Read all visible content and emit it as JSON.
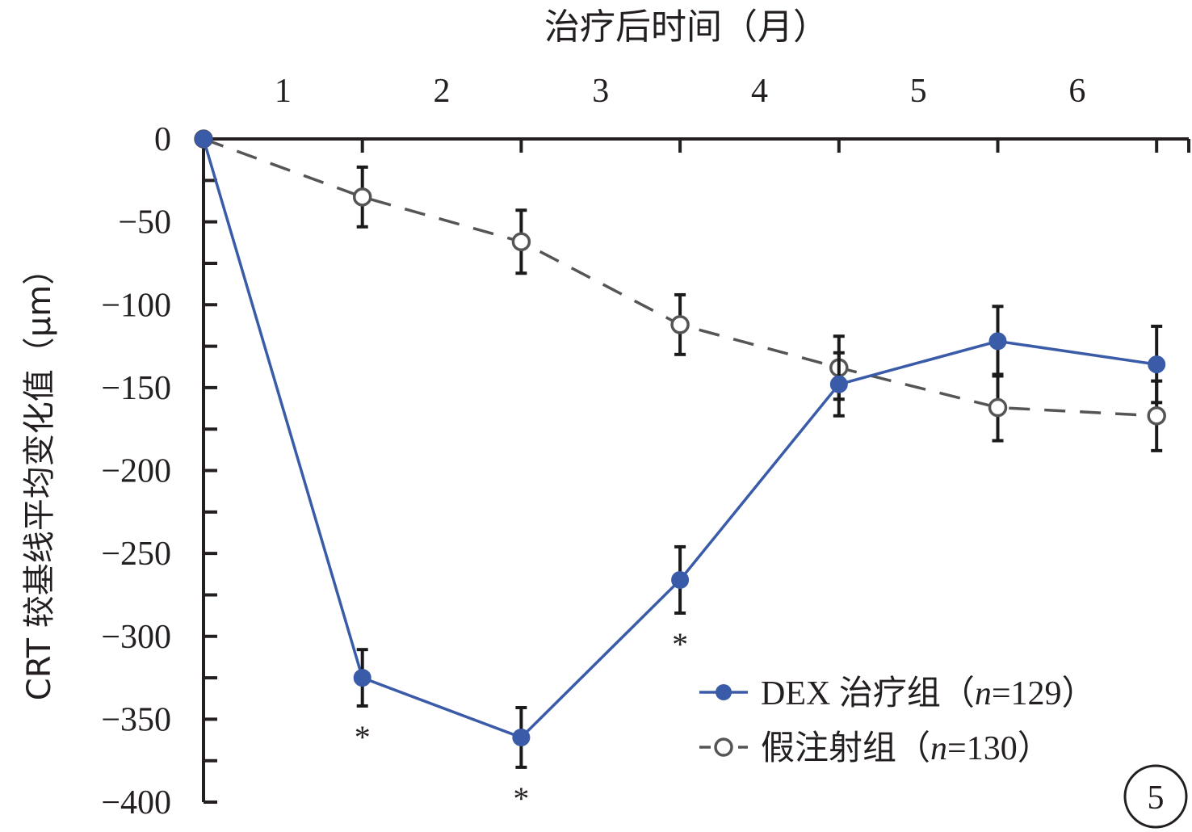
{
  "chart_data": {
    "type": "line",
    "title": "",
    "xlabel": "治疗后时间（月）",
    "ylabel": "CRT 较基线平均变化值（μm）",
    "x_axis_position": "top",
    "x": [
      0,
      1,
      2,
      3,
      4,
      5,
      6
    ],
    "x_tick_labels": [
      "1",
      "2",
      "3",
      "4",
      "5",
      "6"
    ],
    "y_ticks": [
      0,
      -50,
      -100,
      -150,
      -200,
      -250,
      -300,
      -350,
      -400
    ],
    "y_tick_labels": [
      "0",
      "−50",
      "−100",
      "−150",
      "−200",
      "−250",
      "−300",
      "−350",
      "−400"
    ],
    "ylim": [
      -400,
      0
    ],
    "grid": false,
    "legend_position": "bottom-right",
    "series": [
      {
        "name": "DEX 治疗组（n=129）",
        "legend_prefix": "DEX 治疗组（",
        "legend_n": "n",
        "legend_suffix": "=129）",
        "color": "#3a5ba8",
        "marker": "filled-circle",
        "line_style": "solid",
        "values": [
          0,
          -325,
          -361,
          -266,
          -148,
          -122,
          -136
        ],
        "errors": [
          0,
          17,
          18,
          20,
          19,
          21,
          23
        ]
      },
      {
        "name": "假注射组（n=130）",
        "legend_prefix": "假注射组（",
        "legend_n": "n",
        "legend_suffix": "=130）",
        "color": "#555555",
        "marker": "open-circle",
        "line_style": "dashed",
        "values": [
          0,
          -35,
          -62,
          -112,
          -138,
          -162,
          -167
        ],
        "errors": [
          0,
          18,
          19,
          18,
          19,
          20,
          21
        ]
      }
    ],
    "annotations": [
      {
        "text": "*",
        "x": 1,
        "series": 0
      },
      {
        "text": "*",
        "x": 2,
        "series": 0
      },
      {
        "text": "*",
        "x": 3,
        "series": 0
      }
    ],
    "panel_label": "5"
  }
}
